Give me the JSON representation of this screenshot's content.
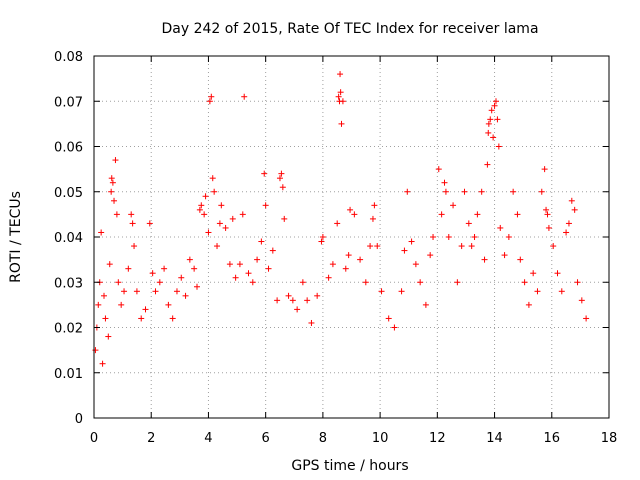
{
  "chart_data": {
    "type": "scatter",
    "title": "Day 242 of 2015, Rate Of TEC Index for receiver lama",
    "xlabel": "GPS time / hours",
    "ylabel": "ROTI / TECUs",
    "xlim": [
      0,
      18
    ],
    "ylim": [
      0,
      0.08
    ],
    "xticks": [
      0,
      2,
      4,
      6,
      8,
      10,
      12,
      14,
      16,
      18
    ],
    "yticks": [
      0,
      0.01,
      0.02,
      0.03,
      0.04,
      0.05,
      0.06,
      0.07,
      0.08
    ],
    "xtick_labels": [
      "0",
      "2",
      "4",
      "6",
      "8",
      "10",
      "12",
      "14",
      "16",
      "18"
    ],
    "ytick_labels": [
      "0",
      "0.01",
      "0.02",
      "0.03",
      "0.04",
      "0.05",
      "0.06",
      "0.07",
      "0.08"
    ],
    "grid": true,
    "marker": "+",
    "color": "#ff0000",
    "series": [
      {
        "name": "ROTI",
        "points": [
          [
            0.05,
            0.015
          ],
          [
            0.1,
            0.02
          ],
          [
            0.15,
            0.025
          ],
          [
            0.2,
            0.03
          ],
          [
            0.25,
            0.041
          ],
          [
            0.3,
            0.012
          ],
          [
            0.35,
            0.027
          ],
          [
            0.4,
            0.022
          ],
          [
            0.5,
            0.018
          ],
          [
            0.55,
            0.034
          ],
          [
            0.6,
            0.05
          ],
          [
            0.62,
            0.053
          ],
          [
            0.66,
            0.052
          ],
          [
            0.7,
            0.048
          ],
          [
            0.75,
            0.057
          ],
          [
            0.8,
            0.045
          ],
          [
            0.85,
            0.03
          ],
          [
            0.95,
            0.025
          ],
          [
            1.05,
            0.028
          ],
          [
            1.2,
            0.033
          ],
          [
            1.3,
            0.045
          ],
          [
            1.35,
            0.043
          ],
          [
            1.4,
            0.038
          ],
          [
            1.5,
            0.028
          ],
          [
            1.65,
            0.022
          ],
          [
            1.8,
            0.024
          ],
          [
            1.95,
            0.043
          ],
          [
            2.05,
            0.032
          ],
          [
            2.15,
            0.028
          ],
          [
            2.3,
            0.03
          ],
          [
            2.45,
            0.033
          ],
          [
            2.6,
            0.025
          ],
          [
            2.75,
            0.022
          ],
          [
            2.9,
            0.028
          ],
          [
            3.05,
            0.031
          ],
          [
            3.2,
            0.027
          ],
          [
            3.35,
            0.035
          ],
          [
            3.5,
            0.033
          ],
          [
            3.6,
            0.029
          ],
          [
            3.7,
            0.046
          ],
          [
            3.75,
            0.047
          ],
          [
            3.85,
            0.045
          ],
          [
            3.9,
            0.049
          ],
          [
            4.0,
            0.041
          ],
          [
            4.05,
            0.07
          ],
          [
            4.1,
            0.071
          ],
          [
            4.15,
            0.053
          ],
          [
            4.2,
            0.05
          ],
          [
            4.3,
            0.038
          ],
          [
            4.4,
            0.043
          ],
          [
            4.45,
            0.047
          ],
          [
            4.6,
            0.042
          ],
          [
            4.75,
            0.034
          ],
          [
            4.85,
            0.044
          ],
          [
            4.95,
            0.031
          ],
          [
            5.1,
            0.034
          ],
          [
            5.2,
            0.045
          ],
          [
            5.25,
            0.071
          ],
          [
            5.4,
            0.032
          ],
          [
            5.55,
            0.03
          ],
          [
            5.7,
            0.035
          ],
          [
            5.85,
            0.039
          ],
          [
            5.95,
            0.054
          ],
          [
            6.0,
            0.047
          ],
          [
            6.1,
            0.033
          ],
          [
            6.25,
            0.037
          ],
          [
            6.4,
            0.026
          ],
          [
            6.5,
            0.053
          ],
          [
            6.55,
            0.054
          ],
          [
            6.6,
            0.051
          ],
          [
            6.65,
            0.044
          ],
          [
            6.8,
            0.027
          ],
          [
            6.95,
            0.026
          ],
          [
            7.1,
            0.024
          ],
          [
            7.3,
            0.03
          ],
          [
            7.45,
            0.026
          ],
          [
            7.6,
            0.021
          ],
          [
            7.8,
            0.027
          ],
          [
            7.95,
            0.039
          ],
          [
            8.0,
            0.04
          ],
          [
            8.2,
            0.031
          ],
          [
            8.35,
            0.034
          ],
          [
            8.5,
            0.043
          ],
          [
            8.55,
            0.071
          ],
          [
            8.58,
            0.07
          ],
          [
            8.6,
            0.076
          ],
          [
            8.62,
            0.072
          ],
          [
            8.65,
            0.065
          ],
          [
            8.7,
            0.07
          ],
          [
            8.8,
            0.033
          ],
          [
            8.9,
            0.036
          ],
          [
            8.95,
            0.046
          ],
          [
            9.1,
            0.045
          ],
          [
            9.3,
            0.035
          ],
          [
            9.5,
            0.03
          ],
          [
            9.65,
            0.038
          ],
          [
            9.75,
            0.044
          ],
          [
            9.8,
            0.047
          ],
          [
            9.9,
            0.038
          ],
          [
            10.05,
            0.028
          ],
          [
            10.3,
            0.022
          ],
          [
            10.5,
            0.02
          ],
          [
            10.75,
            0.028
          ],
          [
            10.85,
            0.037
          ],
          [
            10.95,
            0.05
          ],
          [
            11.1,
            0.039
          ],
          [
            11.25,
            0.034
          ],
          [
            11.4,
            0.03
          ],
          [
            11.6,
            0.025
          ],
          [
            11.75,
            0.036
          ],
          [
            11.85,
            0.04
          ],
          [
            12.05,
            0.055
          ],
          [
            12.15,
            0.045
          ],
          [
            12.25,
            0.052
          ],
          [
            12.3,
            0.05
          ],
          [
            12.4,
            0.04
          ],
          [
            12.55,
            0.047
          ],
          [
            12.7,
            0.03
          ],
          [
            12.85,
            0.038
          ],
          [
            12.95,
            0.05
          ],
          [
            13.1,
            0.043
          ],
          [
            13.2,
            0.038
          ],
          [
            13.3,
            0.04
          ],
          [
            13.4,
            0.045
          ],
          [
            13.55,
            0.05
          ],
          [
            13.65,
            0.035
          ],
          [
            13.75,
            0.056
          ],
          [
            13.78,
            0.063
          ],
          [
            13.8,
            0.065
          ],
          [
            13.85,
            0.066
          ],
          [
            13.9,
            0.068
          ],
          [
            13.95,
            0.062
          ],
          [
            14.0,
            0.069
          ],
          [
            14.05,
            0.07
          ],
          [
            14.1,
            0.066
          ],
          [
            14.15,
            0.06
          ],
          [
            14.2,
            0.042
          ],
          [
            14.35,
            0.036
          ],
          [
            14.5,
            0.04
          ],
          [
            14.65,
            0.05
          ],
          [
            14.8,
            0.045
          ],
          [
            14.9,
            0.035
          ],
          [
            15.05,
            0.03
          ],
          [
            15.2,
            0.025
          ],
          [
            15.35,
            0.032
          ],
          [
            15.5,
            0.028
          ],
          [
            15.65,
            0.05
          ],
          [
            15.75,
            0.055
          ],
          [
            15.8,
            0.046
          ],
          [
            15.85,
            0.045
          ],
          [
            15.9,
            0.042
          ],
          [
            16.05,
            0.038
          ],
          [
            16.2,
            0.032
          ],
          [
            16.35,
            0.028
          ],
          [
            16.5,
            0.041
          ],
          [
            16.6,
            0.043
          ],
          [
            16.7,
            0.048
          ],
          [
            16.8,
            0.046
          ],
          [
            16.9,
            0.03
          ],
          [
            17.05,
            0.026
          ],
          [
            17.2,
            0.022
          ]
        ]
      }
    ]
  }
}
